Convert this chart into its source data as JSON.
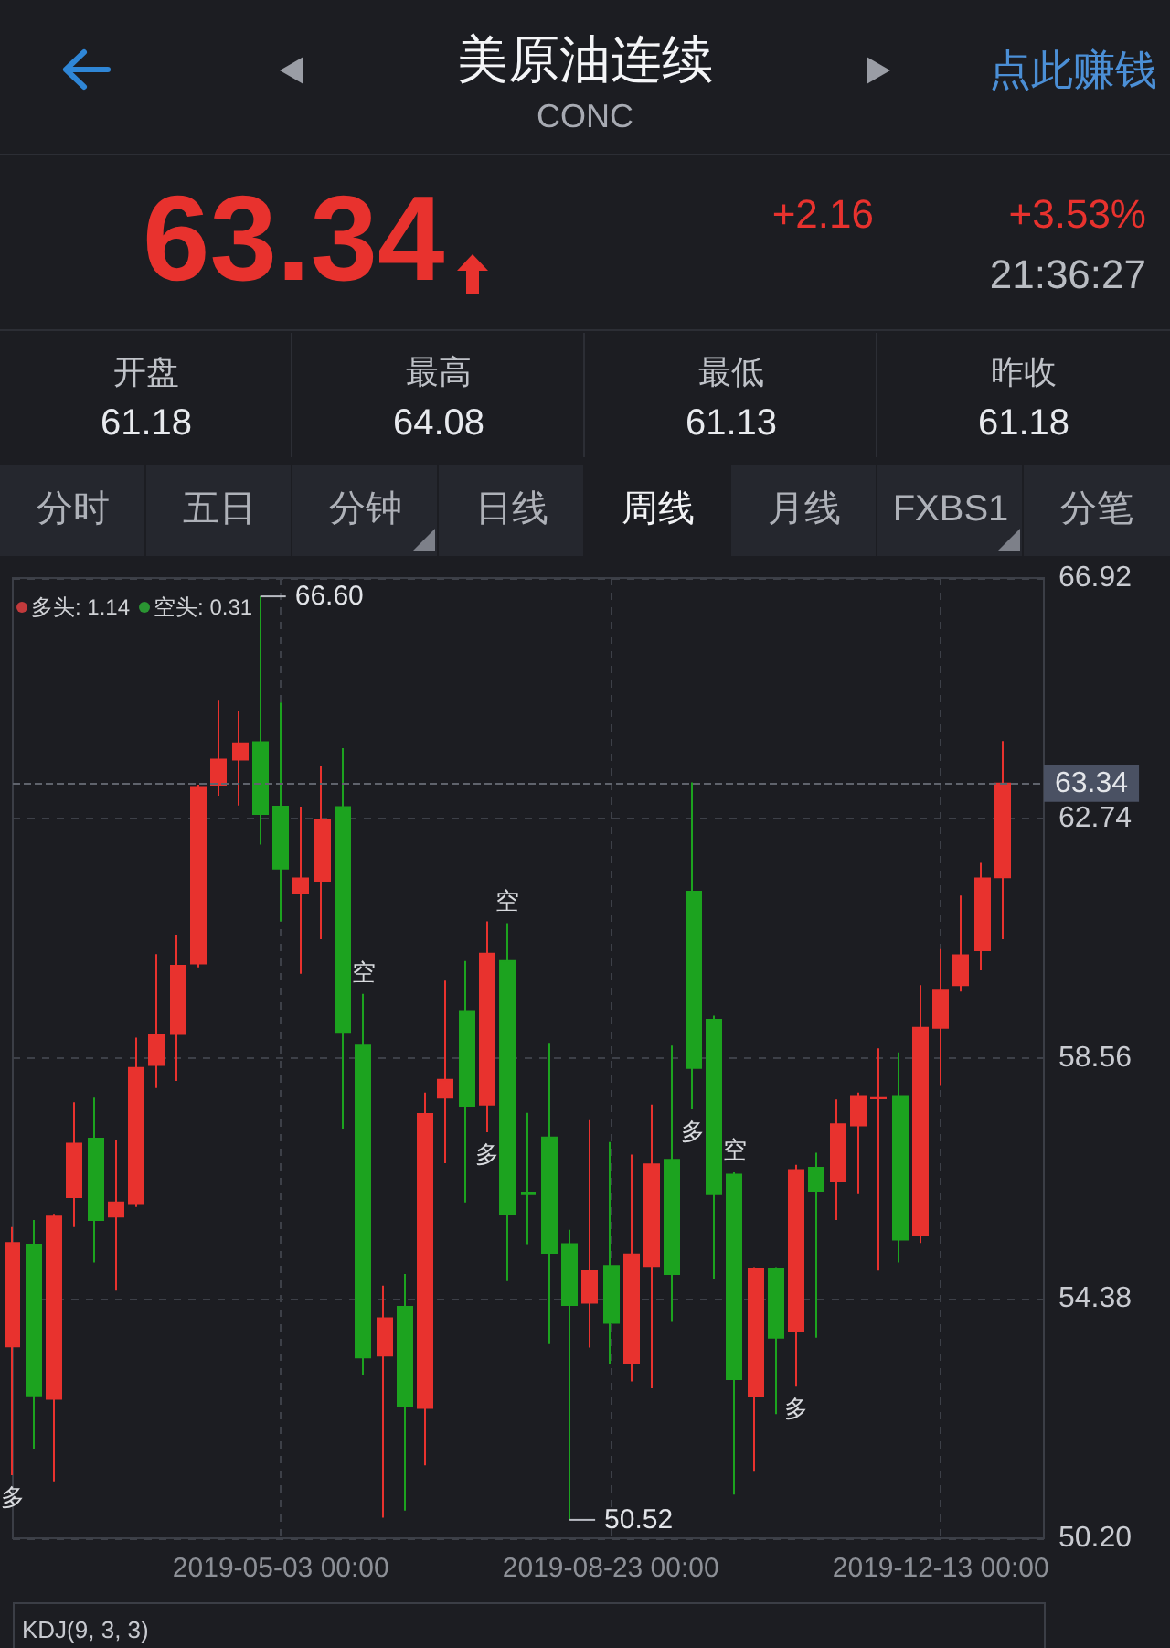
{
  "chart_data": {
    "type": "candlestick",
    "title": "美原油连续",
    "subtitle": "CONC",
    "x": [
      "2019-02-01",
      "2019-02-08",
      "2019-02-15",
      "2019-02-22",
      "2019-03-01",
      "2019-03-08",
      "2019-03-15",
      "2019-03-22",
      "2019-03-29",
      "2019-04-05",
      "2019-04-12",
      "2019-04-19",
      "2019-04-26",
      "2019-05-03",
      "2019-05-10",
      "2019-05-17",
      "2019-05-24",
      "2019-05-31",
      "2019-06-07",
      "2019-06-14",
      "2019-06-21",
      "2019-06-28",
      "2019-07-05",
      "2019-07-12",
      "2019-07-19",
      "2019-07-26",
      "2019-08-02",
      "2019-08-09",
      "2019-08-16",
      "2019-08-23",
      "2019-08-30",
      "2019-09-06",
      "2019-09-13",
      "2019-09-20",
      "2019-09-27",
      "2019-10-04",
      "2019-10-11",
      "2019-10-18",
      "2019-10-25",
      "2019-11-01",
      "2019-11-08",
      "2019-11-15",
      "2019-11-22",
      "2019-11-29",
      "2019-12-06",
      "2019-12-13",
      "2019-12-20",
      "2019-12-27",
      "2020-01-03"
    ],
    "ohlc": [
      [
        53.54,
        55.62,
        51.3,
        55.34
      ],
      [
        55.31,
        55.74,
        51.76,
        52.69
      ],
      [
        52.63,
        55.85,
        51.19,
        55.8
      ],
      [
        56.14,
        57.79,
        55.62,
        57.07
      ],
      [
        57.16,
        57.87,
        55.0,
        55.74
      ],
      [
        55.8,
        57.14,
        54.51,
        56.05
      ],
      [
        56.02,
        58.92,
        55.97,
        58.39
      ],
      [
        58.44,
        60.37,
        58.04,
        58.96
      ],
      [
        58.98,
        60.71,
        58.16,
        60.17
      ],
      [
        60.21,
        63.32,
        60.14,
        63.28
      ],
      [
        63.32,
        64.8,
        63.13,
        63.76
      ],
      [
        63.76,
        64.61,
        62.96,
        64.04
      ],
      [
        64.06,
        66.6,
        62.28,
        62.81
      ],
      [
        62.94,
        64.75,
        60.94,
        61.86
      ],
      [
        61.43,
        62.94,
        60.03,
        61.69
      ],
      [
        61.65,
        63.64,
        60.63,
        62.71
      ],
      [
        62.93,
        63.96,
        57.33,
        59.0
      ],
      [
        58.78,
        59.68,
        53.04,
        53.35
      ],
      [
        53.38,
        54.6,
        50.56,
        54.03
      ],
      [
        54.23,
        54.8,
        50.68,
        52.5
      ],
      [
        52.47,
        57.96,
        51.47,
        57.59
      ],
      [
        57.87,
        59.91,
        56.73,
        58.18
      ],
      [
        59.38,
        60.25,
        56.05,
        57.73
      ],
      [
        57.75,
        60.94,
        57.27,
        60.38
      ],
      [
        60.25,
        60.91,
        54.68,
        55.85
      ],
      [
        56.22,
        57.61,
        55.32,
        56.19
      ],
      [
        57.18,
        58.81,
        53.58,
        55.17
      ],
      [
        55.32,
        55.57,
        50.52,
        54.26
      ],
      [
        54.3,
        57.48,
        53.52,
        54.85
      ],
      [
        54.94,
        57.1,
        53.24,
        53.95
      ],
      [
        53.24,
        56.88,
        52.93,
        55.14
      ],
      [
        54.94,
        57.75,
        52.81,
        56.71
      ],
      [
        56.79,
        58.78,
        53.98,
        54.8
      ],
      [
        61.46,
        63.36,
        57.67,
        58.39
      ],
      [
        59.23,
        59.3,
        54.71,
        56.19
      ],
      [
        56.53,
        56.58,
        50.96,
        52.97
      ],
      [
        52.67,
        54.92,
        51.36,
        54.88
      ],
      [
        54.88,
        54.92,
        52.36,
        53.69
      ],
      [
        53.8,
        56.7,
        52.84,
        56.61
      ],
      [
        56.65,
        56.91,
        53.69,
        56.25
      ],
      [
        56.42,
        57.84,
        55.74,
        57.41
      ],
      [
        57.39,
        57.96,
        56.19,
        57.9
      ],
      [
        57.86,
        58.73,
        54.86,
        57.88
      ],
      [
        57.9,
        58.66,
        55.0,
        55.4
      ],
      [
        55.48,
        59.83,
        55.34,
        59.09
      ],
      [
        59.09,
        60.46,
        58.09,
        59.75
      ],
      [
        59.83,
        61.39,
        59.72,
        60.35
      ],
      [
        60.44,
        61.96,
        60.09,
        61.69
      ],
      [
        61.71,
        64.08,
        60.63,
        63.34
      ]
    ],
    "colors": [
      "#e8322e",
      "#1ca31f",
      "#e8322e",
      "#e8322e",
      "#1ca31f",
      "#e8322e",
      "#e8322e",
      "#e8322e",
      "#e8322e",
      "#e8322e",
      "#e8322e",
      "#e8322e",
      "#1ca31f",
      "#1ca31f",
      "#e8322e",
      "#e8322e",
      "#1ca31f",
      "#1ca31f",
      "#e8322e",
      "#1ca31f",
      "#e8322e",
      "#e8322e",
      "#1ca31f",
      "#e8322e",
      "#1ca31f",
      "#1ca31f",
      "#1ca31f",
      "#1ca31f",
      "#e8322e",
      "#1ca31f",
      "#e8322e",
      "#e8322e",
      "#1ca31f",
      "#1ca31f",
      "#1ca31f",
      "#1ca31f",
      "#e8322e",
      "#1ca31f",
      "#e8322e",
      "#1ca31f",
      "#e8322e",
      "#e8322e",
      "#e8322e",
      "#1ca31f",
      "#e8322e",
      "#e8322e",
      "#e8322e",
      "#e8322e",
      "#e8322e"
    ],
    "xlim": [
      "2019-02-01",
      "2020-01-17"
    ],
    "xticks": [
      {
        "value": "2019-05-03",
        "label": "2019-05-03 00:00"
      },
      {
        "value": "2019-08-23",
        "label": "2019-08-23 00:00"
      },
      {
        "value": "2019-12-13",
        "label": "2019-12-13 00:00"
      }
    ],
    "ylim": [
      50.2,
      66.92
    ],
    "yticks": [
      {
        "value": 50.2,
        "label": "50.20"
      },
      {
        "value": 54.38,
        "label": "54.38"
      },
      {
        "value": 58.56,
        "label": "58.56"
      },
      {
        "value": 62.74,
        "label": "62.74"
      },
      {
        "value": 66.92,
        "label": "66.92"
      }
    ],
    "grid": true,
    "ref_lines": [
      {
        "axis": "y",
        "value": 63.34,
        "label": "63.34",
        "color": "#5f636c",
        "line_style": "dashed"
      }
    ],
    "annotations": [
      "点此赚钱",
      "63.34",
      "+2.16",
      "+3.53%",
      "21:36:27",
      "开盘",
      "61.18",
      "最高",
      "64.08",
      "最低",
      "61.13",
      "昨收",
      "61.18",
      "分时",
      "五日",
      "分钟",
      "日线",
      "周线",
      "月线",
      "FXBS1",
      "分笔",
      "多头: 1.14",
      "空头: 0.31",
      "KDJ(9, 3, 3)",
      {
        "text": "多",
        "x": "2019-02-01",
        "y": 51.3
      },
      {
        "text": "空",
        "x": "2019-05-31",
        "y": 59.68
      },
      {
        "text": "多",
        "x": "2019-07-12",
        "y": 57.27
      },
      {
        "text": "空",
        "x": "2019-07-19",
        "y": 60.91
      },
      {
        "text": "多",
        "x": "2019-09-20",
        "y": 57.67
      },
      {
        "text": "空",
        "x": "2019-10-04",
        "y": 56.58
      },
      {
        "text": "多",
        "x": "2019-10-25",
        "y": 52.84
      },
      {
        "text": "66.60",
        "x": "2019-04-26",
        "y": 66.6
      },
      {
        "text": "50.52",
        "x": "2019-08-09",
        "y": 50.52
      }
    ]
  }
}
